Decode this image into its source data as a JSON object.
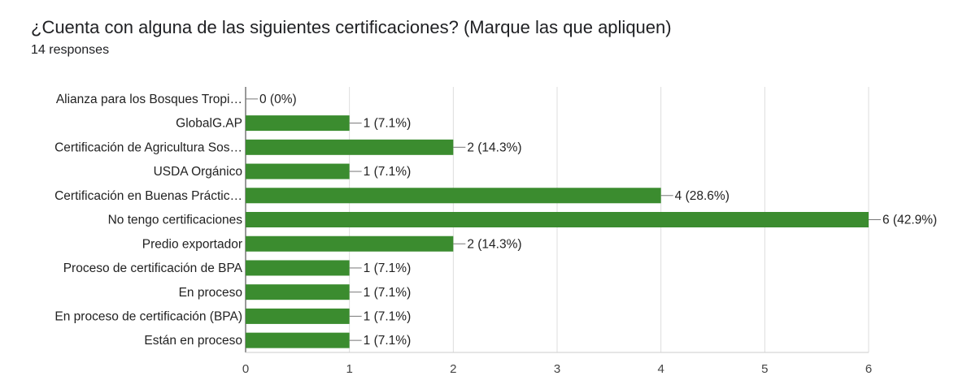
{
  "chart_data": {
    "type": "bar",
    "orientation": "horizontal",
    "title": "¿Cuenta con alguna de las siguientes certificaciones? (Marque las que apliquen)",
    "subtitle": "14 responses",
    "categories": [
      "Alianza para los Bosques Tropi…",
      "GlobalG.AP",
      "Certificación de Agricultura Sos…",
      "USDA Orgánico",
      "Certificación en Buenas Práctic…",
      "No tengo certificaciones",
      "Predio exportador",
      "Proceso de certificación de BPA",
      "En proceso",
      "En proceso de certificación (BPA)",
      "Están en proceso"
    ],
    "values": [
      0,
      1,
      2,
      1,
      4,
      6,
      2,
      1,
      1,
      1,
      1
    ],
    "value_labels": [
      "0 (0%)",
      "1 (7.1%)",
      "2 (14.3%)",
      "1 (7.1%)",
      "4 (28.6%)",
      "6 (42.9%)",
      "2 (14.3%)",
      "1 (7.1%)",
      "1 (7.1%)",
      "1 (7.1%)",
      "1 (7.1%)"
    ],
    "color": "#3b8c2f",
    "xlim": [
      0,
      6
    ],
    "xticks": [
      0,
      1,
      2,
      3,
      4,
      5,
      6
    ],
    "grid": true
  }
}
